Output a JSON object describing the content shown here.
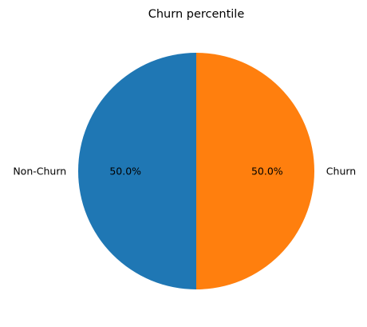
{
  "chart_data": {
    "type": "pie",
    "title": "Churn percentile",
    "slices": [
      {
        "label": "Churn",
        "value": 50.0,
        "pct_label": "50.0%",
        "color": "#ff7f0e"
      },
      {
        "label": "Non-Churn",
        "value": 50.0,
        "pct_label": "50.0%",
        "color": "#1f77b4"
      }
    ],
    "start_angle_deg": 90,
    "direction": "clockwise",
    "legend": "none"
  }
}
